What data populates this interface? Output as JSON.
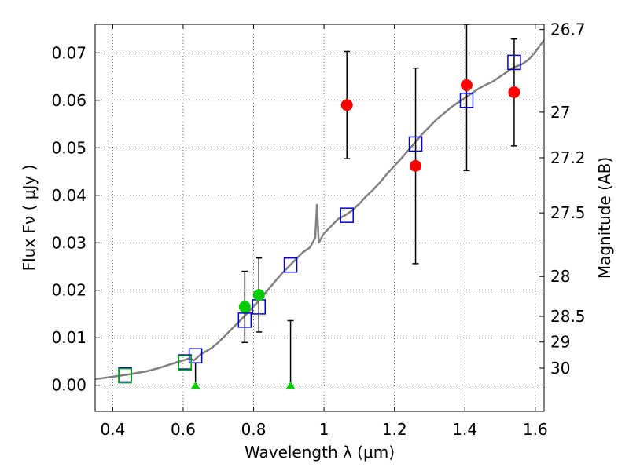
{
  "chart_data": {
    "type": "scatter",
    "title": "",
    "xlabel": "Wavelength  λ (μm)",
    "ylabel": "Flux  Fν  ( μJy )",
    "y2label": "Magnitude (AB)",
    "xlim": [
      0.35,
      1.625
    ],
    "ylim": [
      -0.0055,
      0.076
    ],
    "grid": true,
    "x_ticks": [
      {
        "value": 0.4,
        "label": "0.4"
      },
      {
        "value": 0.6,
        "label": "0.6"
      },
      {
        "value": 0.8,
        "label": "0.8"
      },
      {
        "value": 1.0,
        "label": "1"
      },
      {
        "value": 1.2,
        "label": "1.2"
      },
      {
        "value": 1.4,
        "label": "1.4"
      },
      {
        "value": 1.6,
        "label": "1.6"
      }
    ],
    "y_ticks": [
      {
        "value": 0.0,
        "label": "0.00"
      },
      {
        "value": 0.01,
        "label": "0.01"
      },
      {
        "value": 0.02,
        "label": "0.02"
      },
      {
        "value": 0.03,
        "label": "0.03"
      },
      {
        "value": 0.04,
        "label": "0.04"
      },
      {
        "value": 0.05,
        "label": "0.05"
      },
      {
        "value": 0.06,
        "label": "0.06"
      },
      {
        "value": 0.07,
        "label": "0.07"
      }
    ],
    "y2_ticks": [
      {
        "flux": 0.0749,
        "label": "26.7"
      },
      {
        "flux": 0.0575,
        "label": "27"
      },
      {
        "flux": 0.0479,
        "label": "27.2"
      },
      {
        "flux": 0.0363,
        "label": "27.5"
      },
      {
        "flux": 0.0229,
        "label": "28"
      },
      {
        "flux": 0.0145,
        "label": "28.5"
      },
      {
        "flux": 0.0091,
        "label": "29"
      },
      {
        "flux": 0.0036,
        "label": "30"
      }
    ],
    "model_spectrum": {
      "color": "#808080",
      "points": [
        [
          0.35,
          0.0013
        ],
        [
          0.38,
          0.0016
        ],
        [
          0.41,
          0.0019
        ],
        [
          0.44,
          0.0022
        ],
        [
          0.47,
          0.0026
        ],
        [
          0.5,
          0.003
        ],
        [
          0.53,
          0.0036
        ],
        [
          0.56,
          0.0043
        ],
        [
          0.59,
          0.005
        ],
        [
          0.62,
          0.0057
        ],
        [
          0.63,
          0.0052
        ],
        [
          0.65,
          0.0065
        ],
        [
          0.68,
          0.0078
        ],
        [
          0.7,
          0.009
        ],
        [
          0.72,
          0.0105
        ],
        [
          0.74,
          0.012
        ],
        [
          0.76,
          0.0135
        ],
        [
          0.78,
          0.015
        ],
        [
          0.8,
          0.0166
        ],
        [
          0.82,
          0.0182
        ],
        [
          0.84,
          0.02
        ],
        [
          0.86,
          0.0218
        ],
        [
          0.88,
          0.0235
        ],
        [
          0.9,
          0.025
        ],
        [
          0.92,
          0.0265
        ],
        [
          0.94,
          0.028
        ],
        [
          0.96,
          0.029
        ],
        [
          0.975,
          0.031
        ],
        [
          0.98,
          0.038
        ],
        [
          0.985,
          0.03
        ],
        [
          1.0,
          0.032
        ],
        [
          1.02,
          0.0335
        ],
        [
          1.04,
          0.035
        ],
        [
          1.06,
          0.0358
        ],
        [
          1.08,
          0.0368
        ],
        [
          1.1,
          0.0382
        ],
        [
          1.12,
          0.0398
        ],
        [
          1.14,
          0.0412
        ],
        [
          1.16,
          0.0428
        ],
        [
          1.18,
          0.0446
        ],
        [
          1.2,
          0.0462
        ],
        [
          1.22,
          0.0478
        ],
        [
          1.24,
          0.0495
        ],
        [
          1.26,
          0.0512
        ],
        [
          1.28,
          0.053
        ],
        [
          1.3,
          0.0545
        ],
        [
          1.32,
          0.056
        ],
        [
          1.34,
          0.0572
        ],
        [
          1.36,
          0.0585
        ],
        [
          1.38,
          0.0595
        ],
        [
          1.4,
          0.0605
        ],
        [
          1.42,
          0.0615
        ],
        [
          1.44,
          0.0625
        ],
        [
          1.46,
          0.0633
        ],
        [
          1.48,
          0.064
        ],
        [
          1.5,
          0.065
        ],
        [
          1.52,
          0.066
        ],
        [
          1.54,
          0.067
        ],
        [
          1.56,
          0.0675
        ],
        [
          1.58,
          0.0685
        ],
        [
          1.6,
          0.0702
        ],
        [
          1.625,
          0.0727
        ]
      ]
    },
    "series": [
      {
        "marker": "square",
        "color": "#0000cc",
        "points": [
          [
            0.435,
            0.0022
          ],
          [
            0.605,
            0.0049
          ],
          [
            0.635,
            0.0062
          ],
          [
            0.775,
            0.0137
          ],
          [
            0.815,
            0.0165
          ],
          [
            0.905,
            0.0253
          ],
          [
            1.065,
            0.0358
          ],
          [
            1.26,
            0.0508
          ],
          [
            1.405,
            0.06
          ],
          [
            1.54,
            0.068
          ]
        ]
      },
      {
        "marker": "square",
        "color": "#00aa00",
        "points": [
          [
            0.435,
            0.002
          ],
          [
            0.605,
            0.0047
          ]
        ]
      },
      {
        "marker": "circle",
        "color": "#00cc00",
        "points": [
          {
            "x": 0.775,
            "y": 0.0165,
            "err_low": 0.009,
            "err_high": 0.024
          },
          {
            "x": 0.815,
            "y": 0.019,
            "err_low": 0.0112,
            "err_high": 0.0268
          }
        ]
      },
      {
        "marker": "circle",
        "color": "#ff0000",
        "points": [
          {
            "x": 1.065,
            "y": 0.059,
            "err_low": 0.0477,
            "err_high": 0.0703
          },
          {
            "x": 1.26,
            "y": 0.0462,
            "err_low": 0.0256,
            "err_high": 0.0668
          },
          {
            "x": 1.405,
            "y": 0.0632,
            "err_low": 0.0452,
            "err_high": 0.076
          },
          {
            "x": 1.54,
            "y": 0.0617,
            "err_low": 0.0504,
            "err_high": 0.0729
          }
        ]
      },
      {
        "marker": "triangle",
        "color": "#00cc00",
        "points": [
          {
            "x": 0.635,
            "y": 0.0,
            "err_low": 0.0,
            "err_high": 0.0047
          },
          {
            "x": 0.905,
            "y": 0.0,
            "err_low": 0.0,
            "err_high": 0.0136
          }
        ]
      }
    ]
  }
}
